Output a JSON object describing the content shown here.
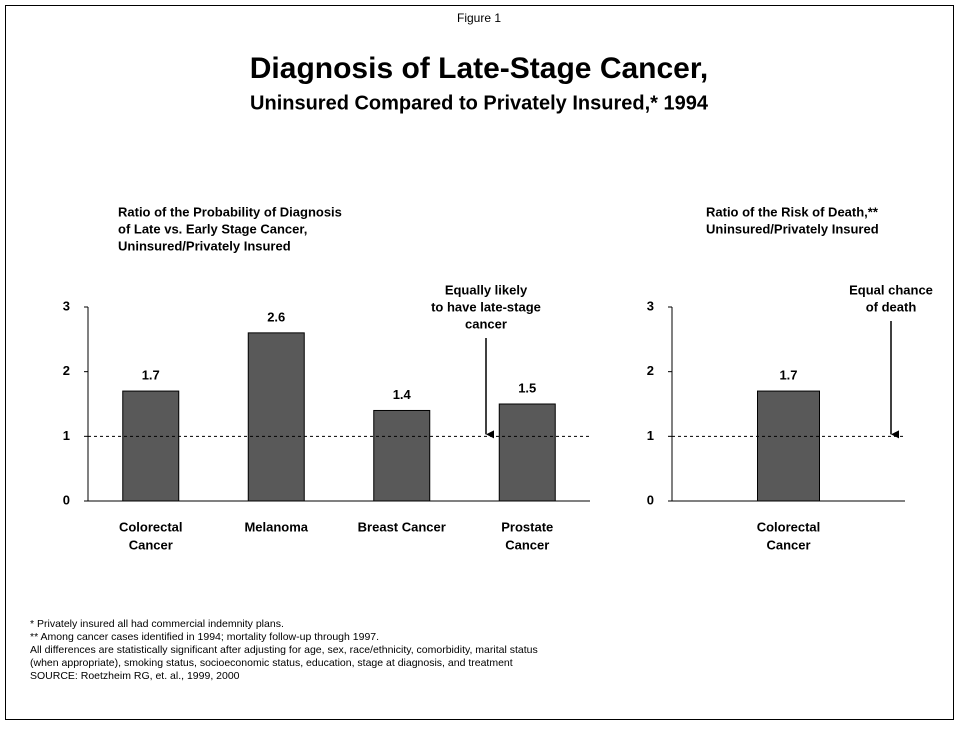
{
  "figure_label": "Figure 1",
  "title": "Diagnosis of Late-Stage Cancer,",
  "subtitle": "Uninsured Compared to Privately Insured,* 1994",
  "chart_data": [
    {
      "type": "bar",
      "y_label": [
        "Ratio of the Probability of Diagnosis",
        "of Late vs. Early Stage Cancer,",
        "Uninsured/Privately Insured"
      ],
      "categories": [
        [
          "Colorectal",
          "Cancer"
        ],
        [
          "Melanoma"
        ],
        [
          "Breast Cancer"
        ],
        [
          "Prostate",
          "Cancer"
        ]
      ],
      "values": [
        1.7,
        2.6,
        1.4,
        1.5
      ],
      "color": "#595959",
      "ylim": [
        0,
        3
      ],
      "yticks": [
        0,
        1,
        2,
        3
      ],
      "reference_line": 1,
      "annotation": [
        "Equally likely",
        "to have late-stage",
        "cancer"
      ]
    },
    {
      "type": "bar",
      "y_label": [
        "Ratio of the Risk of Death,**",
        "Uninsured/Privately Insured"
      ],
      "categories": [
        [
          "Colorectal",
          "Cancer"
        ]
      ],
      "values": [
        1.7
      ],
      "color": "#595959",
      "ylim": [
        0,
        3
      ],
      "yticks": [
        0,
        1,
        2,
        3
      ],
      "reference_line": 1,
      "annotation": [
        "Equal chance",
        "of death"
      ]
    }
  ],
  "footnotes": [
    "* Privately insured all had commercial indemnity plans.",
    "** Among cancer cases identified in 1994; mortality follow-up through 1997.",
    "All differences are statistically significant after adjusting for age, sex, race/ethnicity, comorbidity, marital status",
    "(when appropriate), smoking status, socioeconomic status, education, stage at diagnosis, and treatment",
    "SOURCE: Roetzheim RG, et. al., 1999, 2000"
  ]
}
